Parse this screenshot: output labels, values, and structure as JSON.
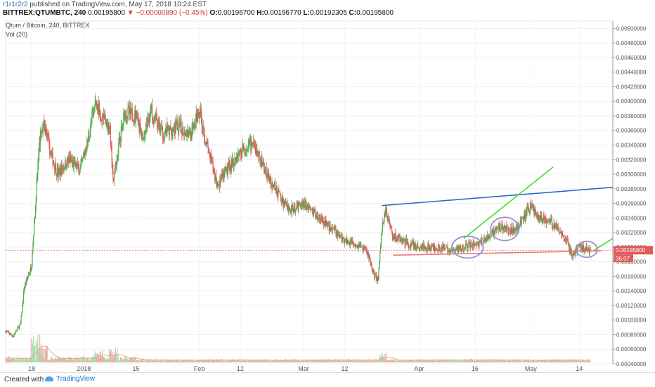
{
  "header": {
    "author": "r1r1r2r2",
    "published_text": "published on TradingView.com, May 17, 2018 10:24 EST",
    "symbol": "BITTREX:QTUMBTC, 240",
    "last": "0.00195800",
    "change_arrow": "▼",
    "change": "−0.00000890 (−0.45%)",
    "open_label": "O:",
    "open": "0.00196700",
    "high_label": "H:",
    "high": "0.00196770",
    "low_label": "L:",
    "low": "0.00192305",
    "close_label": "C:",
    "close": "0.00195800"
  },
  "legend": {
    "title": "Qtum / Bitcoin, 240, BITTREX",
    "volume": "Vol (20)"
  },
  "price_marker": {
    "price": "0.00195800",
    "countdown": "36:07"
  },
  "footer": {
    "created_with": "Created with",
    "brand": "TradingView"
  },
  "colors": {
    "up": "#4caf50",
    "down": "#e05a5a",
    "trend_blue": "#2e6bc7",
    "trend_green": "#3bdf2a",
    "support_red": "#e77b7b",
    "circle_purple": "#9a8fd0",
    "price_line": "#e05a5a",
    "volume_ma": "#e6a05a"
  },
  "chart_data": {
    "type": "candlestick",
    "title": "Qtum / Bitcoin, 240, BITTREX",
    "y_range": [
      0.0004,
      0.0051
    ],
    "y_ticks": [
      "0.00500000",
      "0.00480000",
      "0.00460000",
      "0.00440000",
      "0.00420000",
      "0.00400000",
      "0.00380000",
      "0.00360000",
      "0.00340000",
      "0.00320000",
      "0.00300000",
      "0.00280000",
      "0.00260000",
      "0.00240000",
      "0.00220000",
      "0.00200000",
      "0.00180000",
      "0.00160000",
      "0.00140000",
      "0.00120000",
      "0.00100000",
      "0.00080000",
      "0.00060000",
      "0.00040000"
    ],
    "x_ticks": [
      "18",
      "2018",
      "15",
      "Feb",
      "12",
      "Mar",
      "12",
      "Apr",
      "16",
      "May",
      "14"
    ],
    "x_range": [
      "2017-12-11",
      "2018-05-23"
    ],
    "x_tick_dates": [
      "2017-12-18",
      "2018-01-01",
      "2018-01-15",
      "2018-02-01",
      "2018-02-12",
      "2018-03-01",
      "2018-03-12",
      "2018-04-01",
      "2018-04-16",
      "2018-05-01",
      "2018-05-14"
    ],
    "price_path": [
      [
        "2017-12-11",
        0.00085
      ],
      [
        "2017-12-13",
        0.00078
      ],
      [
        "2017-12-15",
        0.00095
      ],
      [
        "2017-12-16",
        0.00145
      ],
      [
        "2017-12-17",
        0.0016
      ],
      [
        "2017-12-18",
        0.00175
      ],
      [
        "2017-12-19",
        0.0026
      ],
      [
        "2017-12-20",
        0.0034
      ],
      [
        "2017-12-21",
        0.00375
      ],
      [
        "2017-12-23",
        0.0033
      ],
      [
        "2017-12-25",
        0.003
      ],
      [
        "2017-12-28",
        0.0032
      ],
      [
        "2017-12-31",
        0.00305
      ],
      [
        "2018-01-02",
        0.00345
      ],
      [
        "2018-01-04",
        0.00395
      ],
      [
        "2018-01-06",
        0.0038
      ],
      [
        "2018-01-08",
        0.0036
      ],
      [
        "2018-01-09",
        0.0029
      ],
      [
        "2018-01-10",
        0.0033
      ],
      [
        "2018-01-12",
        0.00385
      ],
      [
        "2018-01-15",
        0.0038
      ],
      [
        "2018-01-17",
        0.0035
      ],
      [
        "2018-01-19",
        0.0039
      ],
      [
        "2018-01-22",
        0.00355
      ],
      [
        "2018-01-26",
        0.00365
      ],
      [
        "2018-01-30",
        0.00355
      ],
      [
        "2018-02-01",
        0.0039
      ],
      [
        "2018-02-03",
        0.0034
      ],
      [
        "2018-02-05",
        0.003
      ],
      [
        "2018-02-06",
        0.00285
      ],
      [
        "2018-02-09",
        0.0031
      ],
      [
        "2018-02-12",
        0.0033
      ],
      [
        "2018-02-15",
        0.0034
      ],
      [
        "2018-02-17",
        0.00325
      ],
      [
        "2018-02-19",
        0.003
      ],
      [
        "2018-02-22",
        0.00275
      ],
      [
        "2018-02-25",
        0.0025
      ],
      [
        "2018-03-01",
        0.00262
      ],
      [
        "2018-03-04",
        0.00245
      ],
      [
        "2018-03-07",
        0.00232
      ],
      [
        "2018-03-09",
        0.00222
      ],
      [
        "2018-03-12",
        0.0021
      ],
      [
        "2018-03-15",
        0.00205
      ],
      [
        "2018-03-18",
        0.00195
      ],
      [
        "2018-03-20",
        0.0016
      ],
      [
        "2018-03-21",
        0.00155
      ],
      [
        "2018-03-22",
        0.00225
      ],
      [
        "2018-03-23",
        0.0025
      ],
      [
        "2018-03-25",
        0.00215
      ],
      [
        "2018-03-29",
        0.00205
      ],
      [
        "2018-04-01",
        0.002
      ],
      [
        "2018-04-06",
        0.002
      ],
      [
        "2018-04-10",
        0.00195
      ],
      [
        "2018-04-14",
        0.00202
      ],
      [
        "2018-04-17",
        0.00205
      ],
      [
        "2018-04-20",
        0.00215
      ],
      [
        "2018-04-23",
        0.0023
      ],
      [
        "2018-04-25",
        0.00222
      ],
      [
        "2018-04-28",
        0.0023
      ],
      [
        "2018-05-01",
        0.00258
      ],
      [
        "2018-05-03",
        0.0024
      ],
      [
        "2018-05-06",
        0.00235
      ],
      [
        "2018-05-09",
        0.00222
      ],
      [
        "2018-05-11",
        0.00205
      ],
      [
        "2018-05-12",
        0.00188
      ],
      [
        "2018-05-14",
        0.002
      ],
      [
        "2018-05-16",
        0.00196
      ],
      [
        "2018-05-17",
        0.00196
      ]
    ],
    "volume_spikes": [
      [
        "2017-12-19",
        0.55
      ],
      [
        "2017-12-21",
        0.35
      ],
      [
        "2018-01-09",
        0.3
      ],
      [
        "2018-01-05",
        0.22
      ],
      [
        "2018-03-22",
        0.18
      ]
    ],
    "annotations": [
      {
        "type": "trendline",
        "color": "trend_blue",
        "from": [
          "2018-03-22",
          0.00257
        ],
        "to": [
          "2018-05-23",
          0.00282
        ]
      },
      {
        "type": "trendline",
        "color": "trend_green",
        "from": [
          "2018-04-13",
          0.00212
        ],
        "to": [
          "2018-05-07",
          0.0031
        ]
      },
      {
        "type": "trendline",
        "color": "trend_green",
        "from": [
          "2018-05-18",
          0.00196
        ],
        "to": [
          "2018-05-23",
          0.00212
        ]
      },
      {
        "type": "trendline",
        "color": "support_red",
        "from": [
          "2018-03-25",
          0.00189
        ],
        "to": [
          "2018-05-20",
          0.00195
        ]
      },
      {
        "type": "ellipse",
        "color": "circle_purple",
        "center": [
          "2018-04-14",
          0.002
        ],
        "rx_days": 4.2,
        "ry": 0.00015
      },
      {
        "type": "ellipse",
        "color": "circle_purple",
        "center": [
          "2018-04-24",
          0.00225
        ],
        "rx_days": 3.8,
        "ry": 0.00016
      },
      {
        "type": "ellipse",
        "color": "circle_purple",
        "center": [
          "2018-05-16",
          0.00197
        ],
        "rx_days": 2.8,
        "ry": 0.00011
      }
    ]
  }
}
